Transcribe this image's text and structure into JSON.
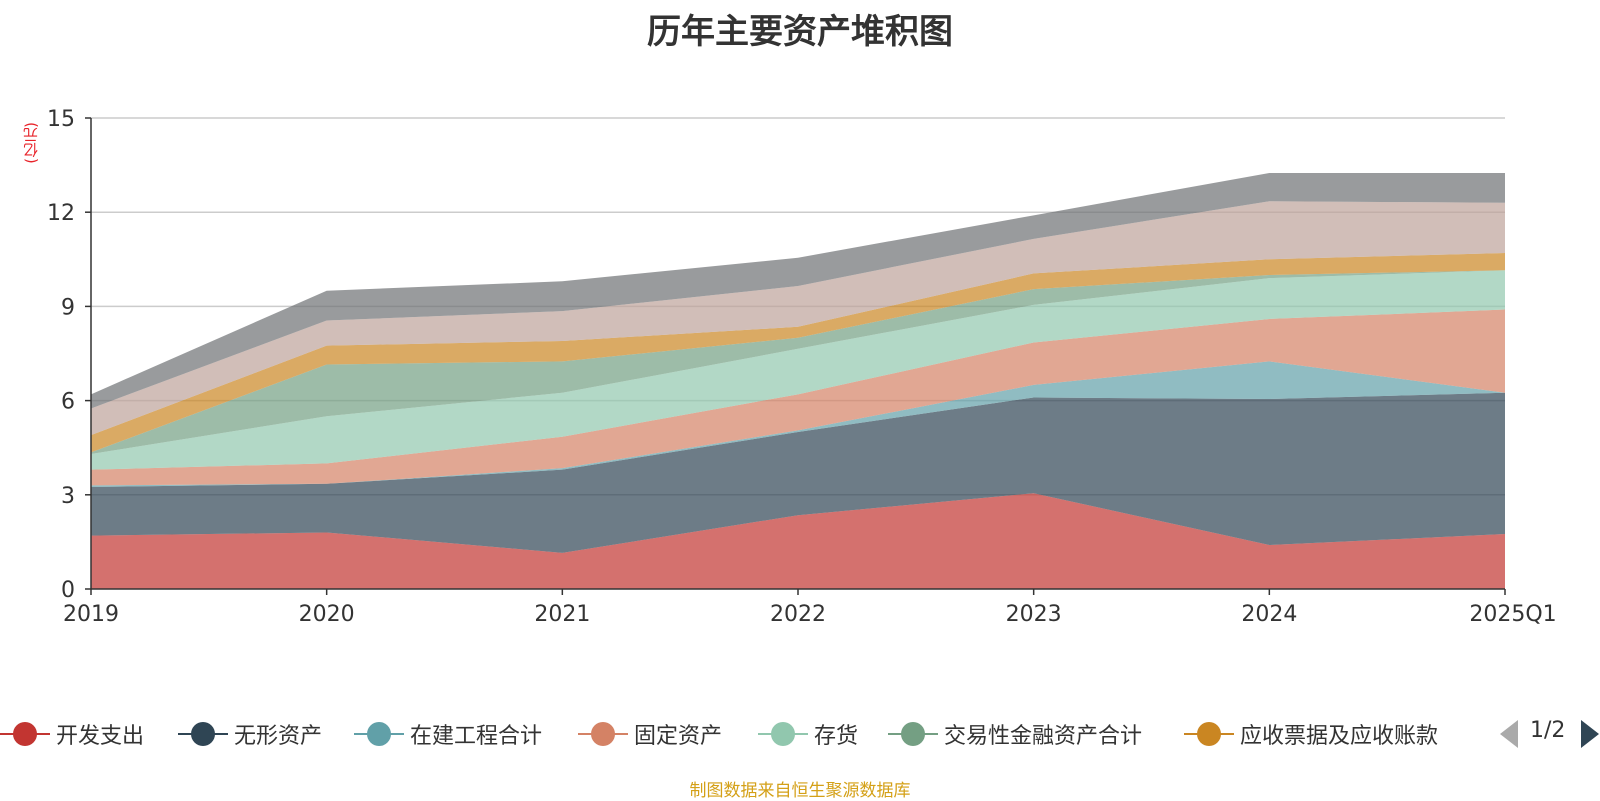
{
  "chart_data": {
    "type": "area",
    "stacked": true,
    "title": "历年主要资产堆积图",
    "ylabel": "(亿元)",
    "xlabel": "",
    "ylim": [
      0,
      15
    ],
    "yticks": [
      0,
      3,
      6,
      9,
      12,
      15
    ],
    "x": [
      "2019",
      "2020",
      "2021",
      "2022",
      "2023",
      "2024",
      "2025Q1"
    ],
    "grid": true,
    "series": [
      {
        "name": "开发支出",
        "color": "#c23531",
        "values": [
          1.7,
          1.8,
          1.15,
          2.35,
          3.05,
          1.4,
          1.75
        ]
      },
      {
        "name": "无形资产",
        "color": "#2f4554",
        "values": [
          1.55,
          1.55,
          2.65,
          2.65,
          3.05,
          4.65,
          4.5
        ]
      },
      {
        "name": "在建工程合计",
        "color": "#61a0a8",
        "values": [
          0.05,
          0.0,
          0.05,
          0.05,
          0.4,
          1.2,
          0.0
        ]
      },
      {
        "name": "固定资产",
        "color": "#d48265",
        "values": [
          0.5,
          0.65,
          1.0,
          1.15,
          1.35,
          1.35,
          2.65
        ]
      },
      {
        "name": "存货",
        "color": "#91c7ae",
        "values": [
          0.5,
          1.5,
          1.4,
          1.45,
          1.2,
          1.3,
          1.25
        ]
      },
      {
        "name": "交易性金融资产合计",
        "color": "#749f83",
        "values": [
          0.05,
          1.65,
          1.0,
          0.35,
          0.5,
          0.1,
          0.0
        ]
      },
      {
        "name": "应收票据及应收账款",
        "color": "#ca8622",
        "values": [
          0.55,
          0.6,
          0.65,
          0.35,
          0.5,
          0.5,
          0.55
        ]
      },
      {
        "color": "#bda29a",
        "values": [
          0.85,
          0.8,
          0.95,
          1.3,
          1.1,
          1.85,
          1.6
        ]
      },
      {
        "color": "#6e7074",
        "values": [
          0.45,
          0.95,
          0.95,
          0.9,
          0.75,
          0.9,
          0.95
        ]
      }
    ],
    "legend": {
      "position": "bottom",
      "page": "1/2"
    },
    "source": "制图数据来自恒生聚源数据库"
  }
}
